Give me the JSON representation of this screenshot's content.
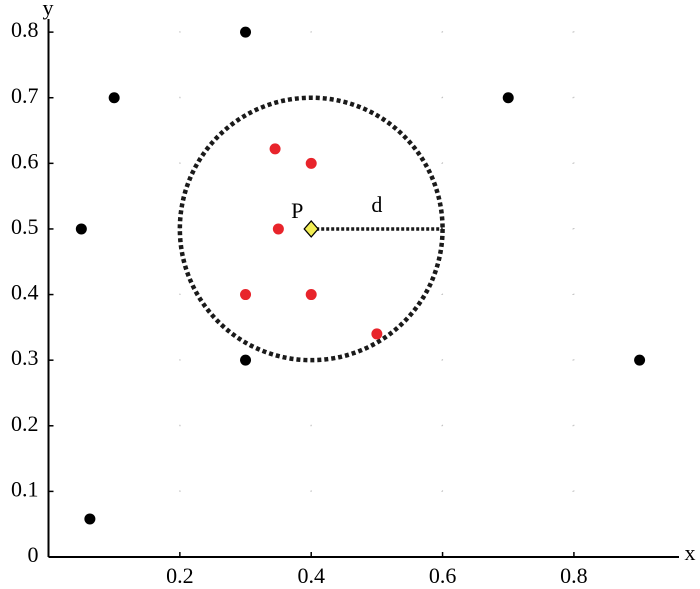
{
  "chart_data": {
    "type": "scatter",
    "x_label": "x",
    "y_label": "y",
    "xlim": [
      0,
      0.96
    ],
    "ylim": [
      0,
      0.82
    ],
    "xticks": [
      0.2,
      0.4,
      0.6,
      0.8
    ],
    "yticks": [
      0,
      0.1,
      0.2,
      0.3,
      0.4,
      0.5,
      0.6,
      0.7,
      0.8
    ],
    "grid": true,
    "series": [
      {
        "color": "#000000",
        "x": [
          0.3,
          0.1,
          0.7,
          0.05,
          0.3,
          0.9,
          0.063
        ],
        "y": [
          0.8,
          0.7,
          0.7,
          0.5,
          0.3,
          0.3,
          0.058
        ]
      },
      {
        "color": "#e8242b",
        "x": [
          0.345,
          0.4,
          0.35,
          0.3,
          0.4,
          0.5
        ],
        "y": [
          0.622,
          0.6,
          0.5,
          0.4,
          0.4,
          0.34
        ]
      }
    ],
    "circle": {
      "center": [
        0.4,
        0.5
      ],
      "radius": 0.2,
      "color": "#1a1a1a"
    },
    "point": {
      "label": "P",
      "color": "#f2ee55"
    },
    "distance_label": "d"
  }
}
